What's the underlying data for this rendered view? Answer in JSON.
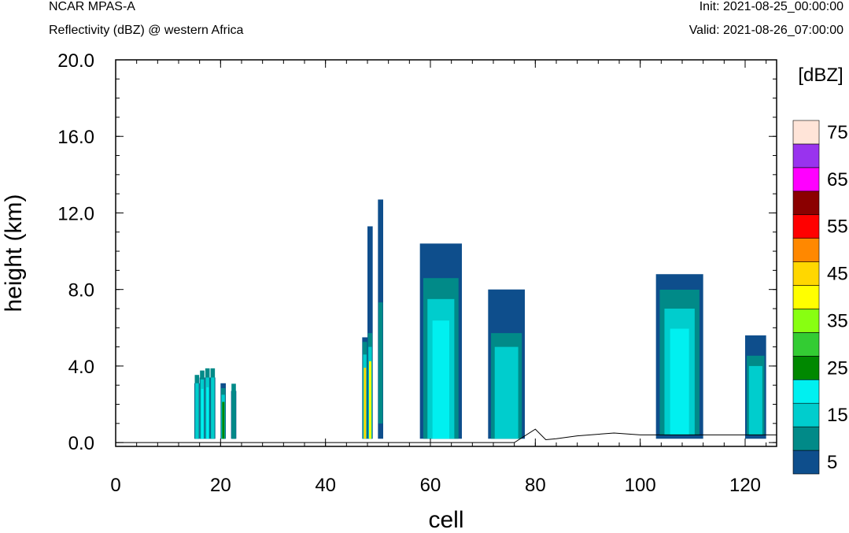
{
  "header": {
    "model": "NCAR MPAS-A",
    "field": "Reflectivity (dBZ) @ western Africa",
    "init": "Init: 2021-08-25_00:00:00",
    "valid": "Valid: 2021-08-26_07:00:00"
  },
  "chart_data": {
    "type": "heatmap",
    "xlabel": "cell",
    "ylabel": "height (km)",
    "xlim": [
      0,
      126
    ],
    "ylim": [
      -0.2,
      20.0
    ],
    "x_ticks": [
      "0",
      "20",
      "40",
      "60",
      "80",
      "100",
      "120"
    ],
    "y_ticks": [
      "0.0",
      "4.0",
      "8.0",
      "12.0",
      "16.0",
      "20.0"
    ],
    "colorbar": {
      "unit": "[dBZ]",
      "labels": [
        "5",
        "15",
        "25",
        "35",
        "45",
        "55",
        "65",
        "75"
      ],
      "colors": [
        "#0e4e8c",
        "#018a88",
        "#00cdcd",
        "#00f0f0",
        "#008800",
        "#33cc33",
        "#88ff11",
        "#ffff00",
        "#ffd700",
        "#ff8800",
        "#ff0000",
        "#8b0000",
        "#ff00ff",
        "#9933ee",
        "#ffe4d8"
      ]
    },
    "cells": [
      {
        "x0": 15,
        "x1": 16,
        "top": 3.1,
        "core": [
          2,
          "0.2-3.1"
        ]
      },
      {
        "x0": 16,
        "x1": 17,
        "top": 3.4,
        "core": [
          3,
          "0.2-3.3"
        ]
      },
      {
        "x0": 17,
        "x1": 18,
        "top": 3.4,
        "core": [
          3,
          "0.2-3.4"
        ]
      },
      {
        "x0": 18,
        "x1": 19,
        "top": 3.4,
        "core": [
          2,
          "0.2-3.4"
        ]
      },
      {
        "x0": 20,
        "x1": 21,
        "top": 3.1,
        "core": [
          4,
          "0.2-2.5"
        ]
      },
      {
        "x0": 22,
        "x1": 23,
        "top": 2.7,
        "core": [
          1,
          "0.2-2.7"
        ]
      },
      {
        "x0": 47,
        "x1": 48,
        "top": 5.5,
        "core": [
          8,
          "0.2-4.6"
        ]
      },
      {
        "x0": 48,
        "x1": 49,
        "top": 11.3,
        "core": [
          7,
          "0.2-5.0"
        ]
      },
      {
        "x0": 50,
        "x1": 51,
        "top": 12.7,
        "core": [
          1,
          "1.0-6.5"
        ]
      },
      {
        "x0": 58,
        "x1": 66,
        "top": 10.4,
        "core": [
          3,
          "0.2-7.5"
        ]
      },
      {
        "x0": 71,
        "x1": 78,
        "top": 8.0,
        "core": [
          2,
          "0.2-5.0"
        ]
      },
      {
        "x0": 103,
        "x1": 112,
        "top": 8.8,
        "core": [
          3,
          "0.4-7.0"
        ]
      },
      {
        "x0": 120,
        "x1": 124,
        "top": 5.6,
        "core": [
          2,
          "0.4-4.0"
        ]
      }
    ],
    "terrain": [
      [
        0,
        0.0
      ],
      [
        76,
        0.0
      ],
      [
        80,
        0.7
      ],
      [
        82,
        0.15
      ],
      [
        84,
        0.2
      ],
      [
        88,
        0.35
      ],
      [
        95,
        0.5
      ],
      [
        100,
        0.4
      ],
      [
        126,
        0.4
      ]
    ]
  }
}
